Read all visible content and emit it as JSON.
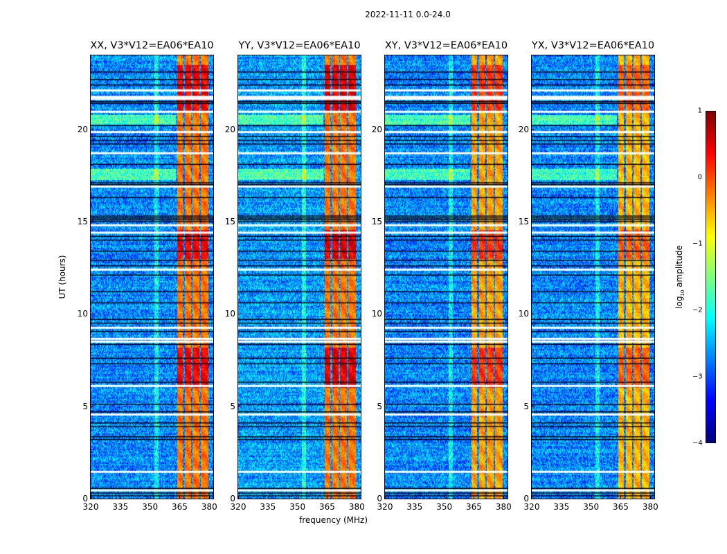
{
  "chart_data": {
    "type": "heatmap",
    "title": "2022-11-11 0.0-24.0",
    "xlabel": "frequency (MHz)",
    "ylabel": "UT (hours)",
    "xlim": [
      320,
      382
    ],
    "ylim": [
      0,
      24
    ],
    "xticks": [
      "320",
      "335",
      "350",
      "365",
      "380"
    ],
    "xtick_values": [
      320,
      335,
      350,
      365,
      380
    ],
    "yticks": [
      "0",
      "5",
      "10",
      "15",
      "20"
    ],
    "ytick_values": [
      0,
      5,
      10,
      15,
      20
    ],
    "colormap": "jet",
    "colorbar": {
      "label_prefix": "log",
      "label_sub": "10",
      "label_suffix": " amplitude",
      "range": [
        -4,
        1
      ],
      "ticks": [
        "1",
        "0",
        "−1",
        "−2",
        "−3",
        "−4"
      ],
      "tick_values": [
        1,
        0,
        -1,
        -2,
        -3,
        -4
      ]
    },
    "panels": [
      {
        "title": "XX, V3*V12=EA06*EA10",
        "background_level": -2.7,
        "band_level": -0.2,
        "band_peak": 0.6
      },
      {
        "title": "YY, V3*V12=EA06*EA10",
        "background_level": -2.6,
        "band_level": -0.2,
        "band_peak": 0.7
      },
      {
        "title": "XY, V3*V12=EA06*EA10",
        "background_level": -2.7,
        "band_level": -0.4,
        "band_peak": 0.5
      },
      {
        "title": "YX, V3*V12=EA06*EA10",
        "background_level": -2.7,
        "band_level": -0.5,
        "band_peak": 0.4
      }
    ],
    "rfi_bands_mhz": [
      [
        363.5,
        366.5
      ],
      [
        367.3,
        370.5
      ],
      [
        371.3,
        374.8
      ],
      [
        375.6,
        379.2
      ]
    ],
    "weak_band_mhz": [
      352,
      354
    ],
    "flagged_hours_white": [
      0.45,
      1.45,
      4.55,
      6.1,
      8.5,
      8.65,
      9.25,
      12.4,
      14.4,
      14.8,
      16.9,
      18.7,
      19.85,
      20.95,
      21.65,
      21.75,
      22.1
    ],
    "flagged_hours_black": [
      0.15,
      0.3,
      0.55,
      3.2,
      3.35,
      3.9,
      4.1,
      4.7,
      5.1,
      6.3,
      7.3,
      7.6,
      8.35,
      9.05,
      9.5,
      9.7,
      10.6,
      11.2,
      12.1,
      12.6,
      12.9,
      13.4,
      14.0,
      14.2,
      15.0,
      15.1,
      15.2,
      15.3,
      16.3,
      17.0,
      17.1,
      18.1,
      19.2,
      19.4,
      19.6,
      20.2,
      21.4,
      21.5,
      22.4,
      22.7,
      23.1
    ],
    "elevated_hours": [
      [
        17.3,
        17.9
      ],
      [
        20.3,
        20.8
      ]
    ]
  }
}
